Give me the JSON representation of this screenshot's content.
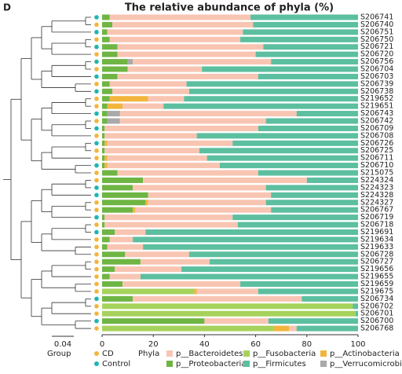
{
  "panel_label": "D",
  "chart_data": {
    "type": "bar",
    "orientation": "horizontal",
    "stacked": true,
    "title": "The relative abundance of phyla (%)",
    "categories": [
      "S206741",
      "S206740",
      "S206751",
      "S206750",
      "S206721",
      "S206720",
      "S206756",
      "S206704",
      "S206703",
      "S206739",
      "S206738",
      "S219652",
      "S219651",
      "S206743",
      "S206742",
      "S206709",
      "S206708",
      "S206726",
      "S206725",
      "S206711",
      "S206710",
      "S215075",
      "S224324",
      "S224323",
      "S224328",
      "S224327",
      "S206767",
      "S206719",
      "S206718",
      "S219691",
      "S219634",
      "S219633",
      "S206728",
      "S206727",
      "S219656",
      "S219655",
      "S219659",
      "S219675",
      "S206734",
      "S206702",
      "S206701",
      "S206700",
      "S206768"
    ],
    "xlim": [
      0,
      100
    ],
    "xticks": [
      0,
      20,
      40,
      60,
      80,
      100
    ],
    "legend_title": "Phyla",
    "series": [
      {
        "name": "p__Proteobacteria",
        "color": "#6fb544",
        "values": [
          3,
          4,
          2,
          3,
          6,
          6,
          10,
          10,
          6,
          3,
          4,
          3,
          2,
          2,
          2,
          1,
          1,
          1,
          1,
          1,
          1,
          6,
          16,
          12,
          18,
          17,
          12,
          1,
          1,
          5,
          3,
          2,
          9,
          15,
          5,
          3,
          8,
          0,
          12,
          0,
          0,
          40,
          0
        ]
      },
      {
        "name": "p__Fusobacteria",
        "color": "#a6d25c",
        "values": [
          0,
          0,
          0,
          0,
          0,
          0,
          0,
          0,
          0,
          0,
          0,
          0,
          0,
          0,
          0,
          0,
          0,
          0,
          0,
          0,
          0,
          0,
          0,
          0,
          0,
          0,
          0,
          0,
          0,
          0,
          0,
          0,
          0,
          0,
          0,
          0,
          0,
          36,
          0,
          98,
          99,
          0,
          67
        ]
      },
      {
        "name": "p__Actinobacteria",
        "color": "#f2b53c",
        "values": [
          0,
          0,
          0,
          0,
          0,
          0,
          0,
          0,
          0,
          0,
          0,
          15,
          6,
          0,
          0,
          0,
          0,
          1,
          0,
          1,
          1,
          0,
          0,
          0,
          0,
          1,
          1,
          0,
          0,
          0,
          0,
          0,
          0,
          0,
          0,
          0,
          0,
          1,
          0,
          0,
          0,
          0,
          6
        ]
      },
      {
        "name": "p__Verrucomicrobia",
        "color": "#a9a9a9",
        "values": [
          0,
          0,
          0,
          0,
          0,
          0,
          2,
          0,
          0,
          0,
          0,
          0,
          0,
          5,
          5,
          0,
          0,
          0,
          0,
          0,
          0,
          0,
          0,
          0,
          0,
          0,
          0,
          0,
          0,
          0,
          0,
          0,
          0,
          0,
          0,
          0,
          0,
          0,
          0,
          0,
          0,
          0,
          0
        ]
      },
      {
        "name": "p__Bacteroidetes",
        "color": "#f8c5b2",
        "values": [
          55,
          55,
          53,
          51,
          57,
          54,
          54,
          29,
          55,
          30,
          30,
          14,
          16,
          69,
          57,
          60,
          36,
          49,
          37,
          39,
          44,
          55,
          64,
          52,
          48,
          46,
          53,
          50,
          52,
          12,
          9,
          14,
          25,
          27,
          26,
          12,
          46,
          24,
          66,
          0,
          0,
          25,
          3
        ]
      },
      {
        "name": "p__Firmicutes",
        "color": "#5cbf9f",
        "values": [
          42,
          41,
          45,
          46,
          37,
          40,
          34,
          61,
          39,
          67,
          66,
          68,
          76,
          24,
          36,
          39,
          63,
          49,
          62,
          59,
          54,
          39,
          20,
          36,
          34,
          36,
          34,
          49,
          47,
          83,
          88,
          84,
          66,
          58,
          69,
          85,
          46,
          39,
          22,
          2,
          1,
          35,
          24
        ]
      }
    ],
    "legend_order": [
      4,
      0,
      1,
      5,
      2,
      3
    ],
    "groups": {
      "title": "Group",
      "names": [
        "CD",
        "Control"
      ],
      "colors": [
        "#f2b53c",
        "#1fb5b0"
      ],
      "values": [
        "Control",
        "CD",
        "Control",
        "CD",
        "Control",
        "CD",
        "Control",
        "CD",
        "Control",
        "CD",
        "Control",
        "CD",
        "CD",
        "Control",
        "CD",
        "Control",
        "CD",
        "Control",
        "CD",
        "CD",
        "Control",
        "CD",
        "CD",
        "Control",
        "Control",
        "CD",
        "CD",
        "Control",
        "CD",
        "Control",
        "CD",
        "CD",
        "CD",
        "CD",
        "CD",
        "CD",
        "CD",
        "CD",
        "Control",
        "CD",
        "CD",
        "Control",
        "CD"
      ]
    },
    "scale_bar_label": "0.04"
  }
}
